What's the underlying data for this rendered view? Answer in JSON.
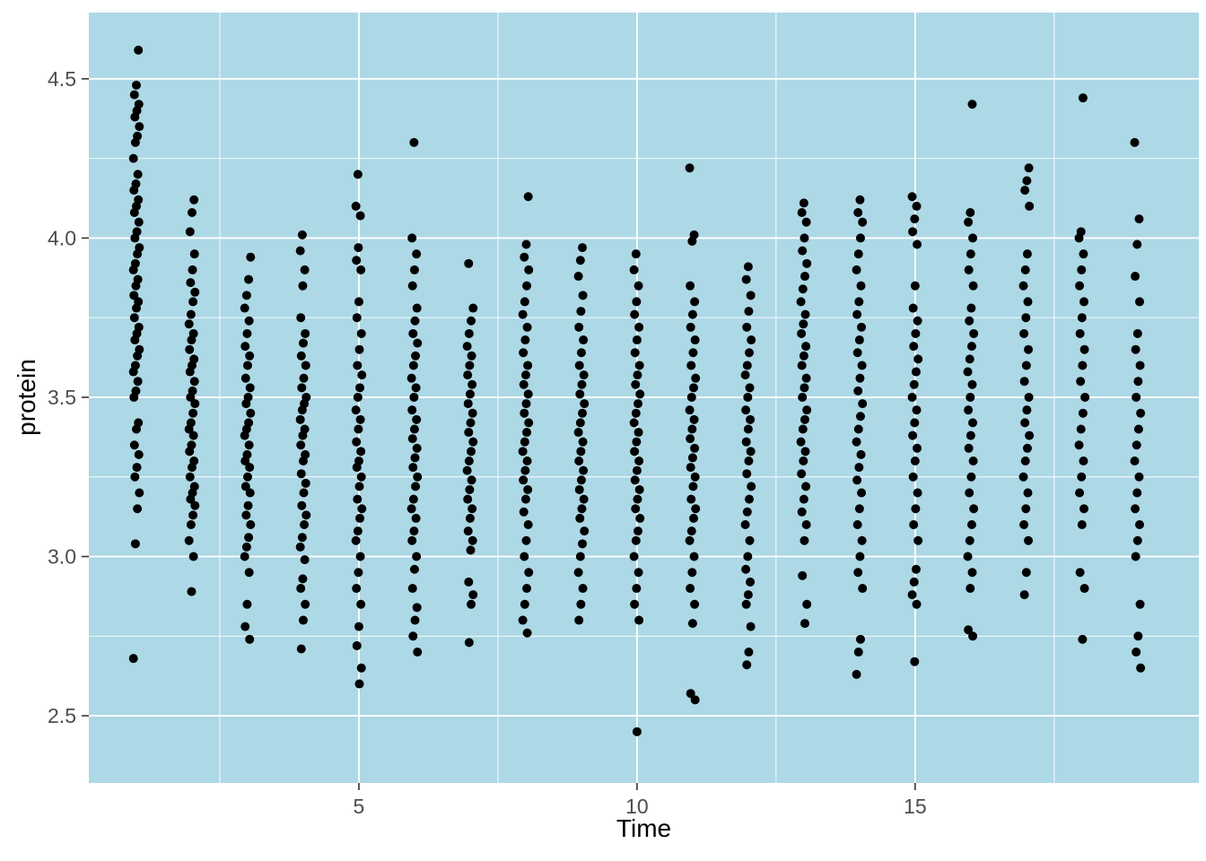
{
  "figure": {
    "x_axis_title": "Time",
    "y_axis_title": "protein"
  },
  "chart_data": {
    "type": "scatter",
    "title": "",
    "xlabel": "Time",
    "ylabel": "protein",
    "xlim": [
      0.145,
      20.1
    ],
    "ylim": [
      2.289,
      4.708
    ],
    "x_ticks": [
      5,
      10,
      15
    ],
    "x_tick_labels": [
      "5",
      "10",
      "15"
    ],
    "y_ticks": [
      2.5,
      3.0,
      3.5,
      4.0,
      4.5
    ],
    "y_tick_labels": [
      "2.5",
      "3.0",
      "3.5",
      "4.0",
      "4.5"
    ],
    "x_minor_ticks": [
      2.5,
      7.5,
      12.5,
      17.5
    ],
    "y_minor_ticks": [
      2.75,
      3.25,
      3.75,
      4.25
    ],
    "grid": "major+minor",
    "legend": "none",
    "panel_background": "#ADD8E6",
    "gridline_color": "#FFFFFF",
    "tick_color": "#333333",
    "tick_label_color": "#4D4D4D",
    "point_color": "#000000",
    "point_radius": 5,
    "columns": [
      {
        "time": 1,
        "protein": [
          2.68,
          3.04,
          3.15,
          3.2,
          3.25,
          3.28,
          3.32,
          3.35,
          3.4,
          3.42,
          3.5,
          3.52,
          3.55,
          3.58,
          3.6,
          3.63,
          3.65,
          3.68,
          3.7,
          3.72,
          3.75,
          3.78,
          3.8,
          3.82,
          3.85,
          3.87,
          3.9,
          3.92,
          3.95,
          3.97,
          4.0,
          4.02,
          4.05,
          4.08,
          4.1,
          4.12,
          4.15,
          4.17,
          4.2,
          4.25,
          4.3,
          4.32,
          4.35,
          4.38,
          4.4,
          4.42,
          4.45,
          4.48,
          4.59
        ]
      },
      {
        "time": 2,
        "protein": [
          2.89,
          3.0,
          3.05,
          3.1,
          3.13,
          3.16,
          3.18,
          3.2,
          3.22,
          3.25,
          3.28,
          3.3,
          3.33,
          3.35,
          3.38,
          3.4,
          3.42,
          3.45,
          3.48,
          3.5,
          3.52,
          3.55,
          3.58,
          3.6,
          3.62,
          3.65,
          3.68,
          3.7,
          3.73,
          3.76,
          3.8,
          3.83,
          3.86,
          3.9,
          3.95,
          4.02,
          4.08,
          4.12
        ]
      },
      {
        "time": 3,
        "protein": [
          2.74,
          2.78,
          2.85,
          2.95,
          3.0,
          3.03,
          3.06,
          3.1,
          3.13,
          3.16,
          3.2,
          3.22,
          3.25,
          3.28,
          3.3,
          3.32,
          3.35,
          3.38,
          3.4,
          3.42,
          3.45,
          3.48,
          3.5,
          3.53,
          3.56,
          3.6,
          3.63,
          3.66,
          3.7,
          3.74,
          3.78,
          3.82,
          3.87,
          3.94
        ]
      },
      {
        "time": 4,
        "protein": [
          2.71,
          2.8,
          2.85,
          2.9,
          2.93,
          2.99,
          3.03,
          3.06,
          3.1,
          3.13,
          3.16,
          3.2,
          3.23,
          3.26,
          3.3,
          3.32,
          3.35,
          3.38,
          3.4,
          3.43,
          3.46,
          3.48,
          3.5,
          3.53,
          3.56,
          3.6,
          3.63,
          3.67,
          3.7,
          3.75,
          3.85,
          3.9,
          3.96,
          4.01
        ]
      },
      {
        "time": 5,
        "protein": [
          2.6,
          2.65,
          2.72,
          2.78,
          2.85,
          2.9,
          2.95,
          3.0,
          3.05,
          3.08,
          3.12,
          3.15,
          3.18,
          3.22,
          3.25,
          3.28,
          3.3,
          3.33,
          3.36,
          3.4,
          3.43,
          3.46,
          3.5,
          3.53,
          3.57,
          3.6,
          3.65,
          3.7,
          3.75,
          3.8,
          3.9,
          3.93,
          3.97,
          4.07,
          4.1,
          4.2
        ]
      },
      {
        "time": 6,
        "protein": [
          2.7,
          2.75,
          2.8,
          2.84,
          2.9,
          2.96,
          3.0,
          3.05,
          3.08,
          3.12,
          3.15,
          3.18,
          3.22,
          3.25,
          3.28,
          3.31,
          3.34,
          3.37,
          3.4,
          3.43,
          3.46,
          3.5,
          3.53,
          3.56,
          3.6,
          3.63,
          3.67,
          3.7,
          3.74,
          3.78,
          3.85,
          3.9,
          3.95,
          4.0,
          4.3
        ]
      },
      {
        "time": 7,
        "protein": [
          2.73,
          2.85,
          2.88,
          2.92,
          3.02,
          3.05,
          3.08,
          3.12,
          3.15,
          3.18,
          3.21,
          3.24,
          3.27,
          3.3,
          3.33,
          3.36,
          3.39,
          3.42,
          3.45,
          3.48,
          3.51,
          3.54,
          3.57,
          3.6,
          3.63,
          3.66,
          3.7,
          3.74,
          3.78,
          3.92
        ]
      },
      {
        "time": 8,
        "protein": [
          2.76,
          2.8,
          2.85,
          2.9,
          2.95,
          3.0,
          3.05,
          3.1,
          3.14,
          3.18,
          3.21,
          3.24,
          3.27,
          3.3,
          3.33,
          3.36,
          3.39,
          3.42,
          3.45,
          3.48,
          3.51,
          3.54,
          3.57,
          3.6,
          3.64,
          3.68,
          3.72,
          3.76,
          3.8,
          3.85,
          3.9,
          3.94,
          3.98,
          4.13
        ]
      },
      {
        "time": 9,
        "protein": [
          2.8,
          2.85,
          2.9,
          2.95,
          3.0,
          3.04,
          3.08,
          3.12,
          3.15,
          3.18,
          3.21,
          3.24,
          3.27,
          3.3,
          3.33,
          3.36,
          3.39,
          3.42,
          3.45,
          3.48,
          3.51,
          3.54,
          3.57,
          3.6,
          3.64,
          3.68,
          3.72,
          3.77,
          3.82,
          3.88,
          3.93,
          3.97
        ]
      },
      {
        "time": 10,
        "protein": [
          2.45,
          2.8,
          2.85,
          2.9,
          2.95,
          3.0,
          3.05,
          3.08,
          3.12,
          3.15,
          3.18,
          3.21,
          3.24,
          3.27,
          3.3,
          3.33,
          3.36,
          3.39,
          3.42,
          3.45,
          3.48,
          3.51,
          3.54,
          3.57,
          3.6,
          3.64,
          3.68,
          3.72,
          3.76,
          3.8,
          3.85,
          3.9,
          3.95
        ]
      },
      {
        "time": 11,
        "protein": [
          2.55,
          2.57,
          2.79,
          2.85,
          2.9,
          2.95,
          3.0,
          3.05,
          3.08,
          3.12,
          3.15,
          3.18,
          3.22,
          3.25,
          3.28,
          3.31,
          3.34,
          3.37,
          3.4,
          3.43,
          3.46,
          3.5,
          3.53,
          3.56,
          3.6,
          3.64,
          3.68,
          3.72,
          3.76,
          3.8,
          3.85,
          3.99,
          4.01,
          4.22
        ]
      },
      {
        "time": 12,
        "protein": [
          2.66,
          2.7,
          2.78,
          2.85,
          2.88,
          2.92,
          2.96,
          3.0,
          3.05,
          3.1,
          3.14,
          3.18,
          3.22,
          3.26,
          3.3,
          3.33,
          3.36,
          3.4,
          3.43,
          3.46,
          3.5,
          3.53,
          3.57,
          3.6,
          3.64,
          3.68,
          3.72,
          3.77,
          3.82,
          3.87,
          3.91
        ]
      },
      {
        "time": 13,
        "protein": [
          2.79,
          2.85,
          2.94,
          3.05,
          3.1,
          3.14,
          3.18,
          3.22,
          3.26,
          3.3,
          3.33,
          3.36,
          3.4,
          3.43,
          3.46,
          3.5,
          3.53,
          3.56,
          3.6,
          3.63,
          3.66,
          3.7,
          3.73,
          3.76,
          3.8,
          3.84,
          3.88,
          3.92,
          3.96,
          4.0,
          4.05,
          4.08,
          4.11
        ]
      },
      {
        "time": 14,
        "protein": [
          2.63,
          2.7,
          2.74,
          2.9,
          2.95,
          3.0,
          3.05,
          3.1,
          3.15,
          3.2,
          3.24,
          3.28,
          3.32,
          3.36,
          3.4,
          3.44,
          3.48,
          3.52,
          3.56,
          3.6,
          3.64,
          3.68,
          3.72,
          3.76,
          3.8,
          3.85,
          3.9,
          3.95,
          4.0,
          4.05,
          4.08,
          4.12
        ]
      },
      {
        "time": 15,
        "protein": [
          2.67,
          2.85,
          2.88,
          2.92,
          2.96,
          3.05,
          3.1,
          3.15,
          3.2,
          3.25,
          3.3,
          3.34,
          3.38,
          3.42,
          3.46,
          3.5,
          3.54,
          3.58,
          3.62,
          3.66,
          3.7,
          3.74,
          3.78,
          3.85,
          3.98,
          4.02,
          4.06,
          4.1,
          4.13
        ]
      },
      {
        "time": 16,
        "protein": [
          2.75,
          2.77,
          2.9,
          2.95,
          3.0,
          3.05,
          3.1,
          3.15,
          3.2,
          3.25,
          3.3,
          3.34,
          3.38,
          3.42,
          3.46,
          3.5,
          3.54,
          3.58,
          3.62,
          3.66,
          3.7,
          3.74,
          3.78,
          3.85,
          3.9,
          3.95,
          4.0,
          4.05,
          4.08,
          4.42
        ]
      },
      {
        "time": 17,
        "protein": [
          2.88,
          2.95,
          3.05,
          3.1,
          3.15,
          3.2,
          3.25,
          3.3,
          3.34,
          3.38,
          3.42,
          3.46,
          3.5,
          3.55,
          3.6,
          3.65,
          3.7,
          3.75,
          3.8,
          3.85,
          3.9,
          3.95,
          4.1,
          4.15,
          4.18,
          4.22
        ]
      },
      {
        "time": 18,
        "protein": [
          2.74,
          2.9,
          2.95,
          3.1,
          3.15,
          3.2,
          3.25,
          3.3,
          3.35,
          3.4,
          3.45,
          3.5,
          3.55,
          3.6,
          3.65,
          3.7,
          3.75,
          3.8,
          3.85,
          3.9,
          3.95,
          4.0,
          4.02,
          4.44
        ]
      },
      {
        "time": 19,
        "protein": [
          2.65,
          2.7,
          2.75,
          2.85,
          3.0,
          3.05,
          3.1,
          3.15,
          3.2,
          3.25,
          3.3,
          3.35,
          3.4,
          3.45,
          3.5,
          3.55,
          3.6,
          3.65,
          3.7,
          3.8,
          3.88,
          3.98,
          4.06,
          4.3
        ]
      }
    ]
  }
}
